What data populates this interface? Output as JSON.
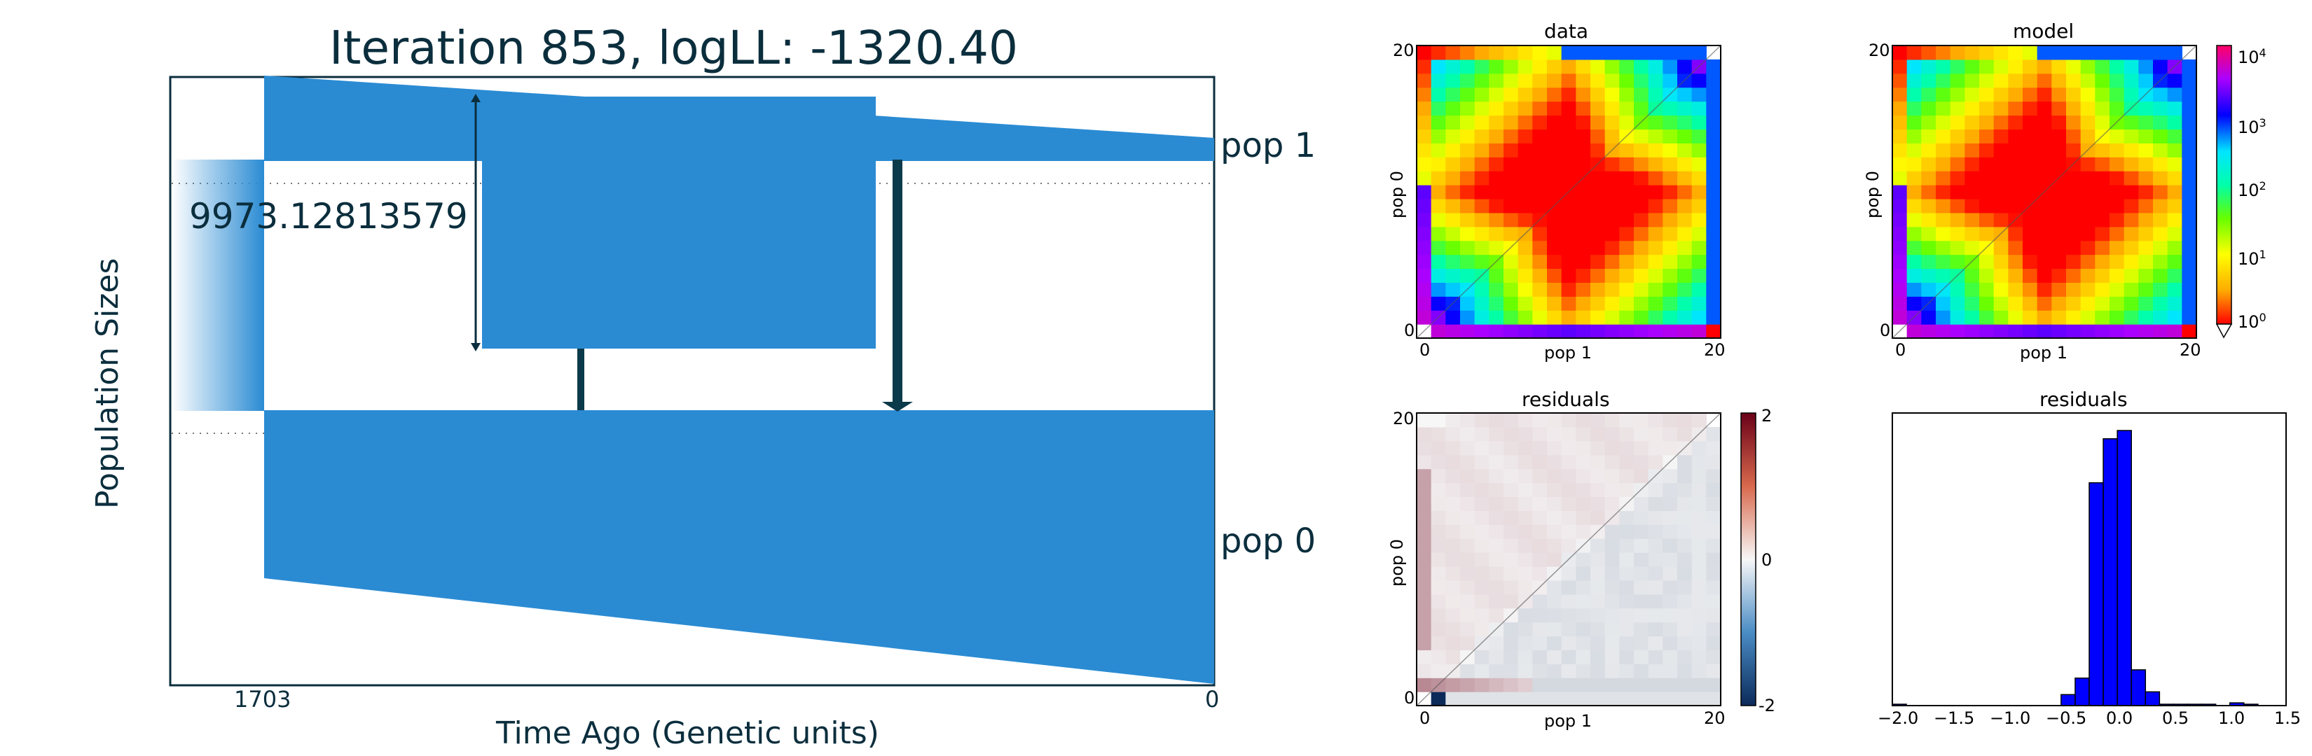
{
  "main": {
    "title": "Iteration 853, logLL:   -1320.40",
    "ylabel": "Population Sizes",
    "xlabel": "Time Ago (Genetic units)",
    "x_ticks": [
      "1703",
      "0"
    ],
    "pop_labels": [
      "pop 1",
      "pop 0"
    ],
    "migration_label": "9973.12813579",
    "color": "#2a8bd3",
    "arrow_color": "#0b3a4a"
  },
  "panels": {
    "data_title": "data",
    "model_title": "model",
    "residuals_title": "residuals",
    "hist_title": "residuals",
    "x_label": "pop 1",
    "y_label": "pop 0",
    "sfs_ticks": [
      "0",
      "20"
    ],
    "colorbar_ticks": [
      "10",
      "10",
      "10",
      "10",
      "10"
    ],
    "colorbar_exps": [
      "4",
      "3",
      "2",
      "1",
      "0"
    ],
    "resid_cbar_ticks": [
      "2",
      "0",
      "-2"
    ],
    "hist_ticks": [
      "−2.0",
      "−1.5",
      "−1.0",
      "−0.5",
      "0.0",
      "0.5",
      "1.0",
      "1.5"
    ]
  },
  "chart_data": [
    {
      "type": "area",
      "title": "Iteration 853, logLL:   -1320.40",
      "xlabel": "Time Ago (Genetic units)",
      "ylabel": "Population Sizes",
      "x_ticks": [
        1703,
        0
      ],
      "series": [
        {
          "name": "pop 1"
        },
        {
          "name": "pop 0"
        }
      ],
      "annotations": [
        "9973.12813579"
      ]
    },
    {
      "type": "heatmap",
      "title": "data",
      "xlabel": "pop 1",
      "ylabel": "pop 0",
      "xlim": [
        0,
        20
      ],
      "ylim": [
        0,
        20
      ],
      "colorbar": "log",
      "colorbar_range": [
        1,
        10000
      ]
    },
    {
      "type": "heatmap",
      "title": "model",
      "xlabel": "pop 1",
      "ylabel": "pop 0",
      "xlim": [
        0,
        20
      ],
      "ylim": [
        0,
        20
      ]
    },
    {
      "type": "heatmap",
      "title": "residuals",
      "xlabel": "pop 1",
      "ylabel": "pop 0",
      "xlim": [
        0,
        20
      ],
      "ylim": [
        0,
        20
      ],
      "colorbar_range": [
        -2,
        2
      ]
    },
    {
      "type": "bar",
      "title": "residuals",
      "xlim": [
        -2.0,
        1.5
      ],
      "bin_width": 0.125,
      "bin_starts": [
        -2.0,
        -0.5,
        -0.375,
        -0.25,
        -0.125,
        0.0,
        0.125,
        0.25,
        0.375,
        0.5,
        0.625,
        0.75,
        1.0,
        1.125
      ],
      "values": [
        0.005,
        0.04,
        0.1,
        0.81,
        0.97,
        1.0,
        0.13,
        0.05,
        0.005,
        0.005,
        0.005,
        0.005,
        0.01,
        0.005
      ],
      "color": "#0000ff"
    }
  ]
}
